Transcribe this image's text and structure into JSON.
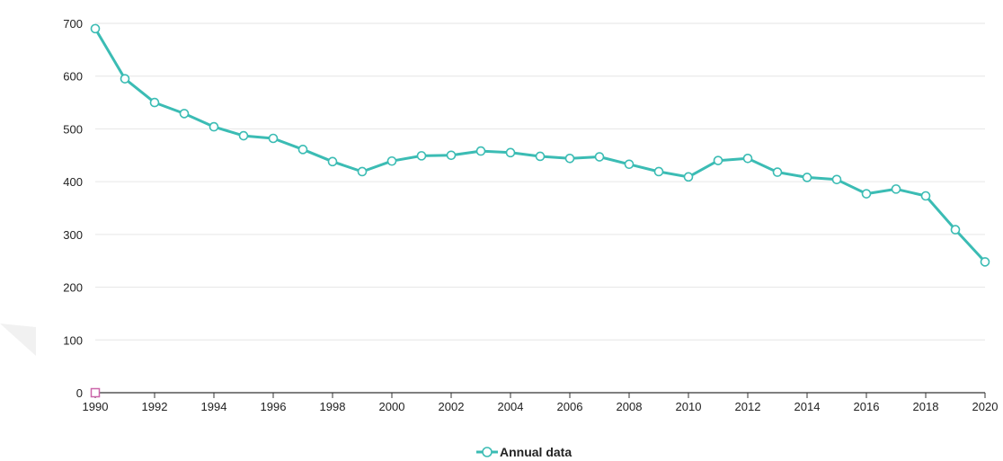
{
  "chart_data": {
    "type": "line",
    "title": "",
    "xlabel": "",
    "ylabel": "",
    "xlim": [
      1990,
      2020
    ],
    "ylim": [
      0,
      700
    ],
    "yticks": [
      0,
      100,
      200,
      300,
      400,
      500,
      600,
      700
    ],
    "xticks": [
      1990,
      1992,
      1994,
      1996,
      1998,
      2000,
      2002,
      2004,
      2006,
      2008,
      2010,
      2012,
      2014,
      2016,
      2018,
      2020
    ],
    "grid": true,
    "legend_position": "bottom-center",
    "series": [
      {
        "name": "Annual data",
        "color": "#3bbcb4",
        "marker": "open-circle",
        "x": [
          1990,
          1991,
          1992,
          1993,
          1994,
          1995,
          1996,
          1997,
          1998,
          1999,
          2000,
          2001,
          2002,
          2003,
          2004,
          2005,
          2006,
          2007,
          2008,
          2009,
          2010,
          2011,
          2012,
          2013,
          2014,
          2015,
          2016,
          2017,
          2018,
          2019,
          2020
        ],
        "values": [
          690,
          595,
          550,
          529,
          504,
          487,
          482,
          461,
          438,
          419,
          439,
          449,
          450,
          458,
          455,
          448,
          444,
          447,
          433,
          419,
          409,
          440,
          444,
          418,
          408,
          404,
          377,
          386,
          373,
          309,
          248
        ]
      }
    ],
    "origin_marker": {
      "x": 1990,
      "y": 0,
      "color": "#cc66aa"
    }
  }
}
